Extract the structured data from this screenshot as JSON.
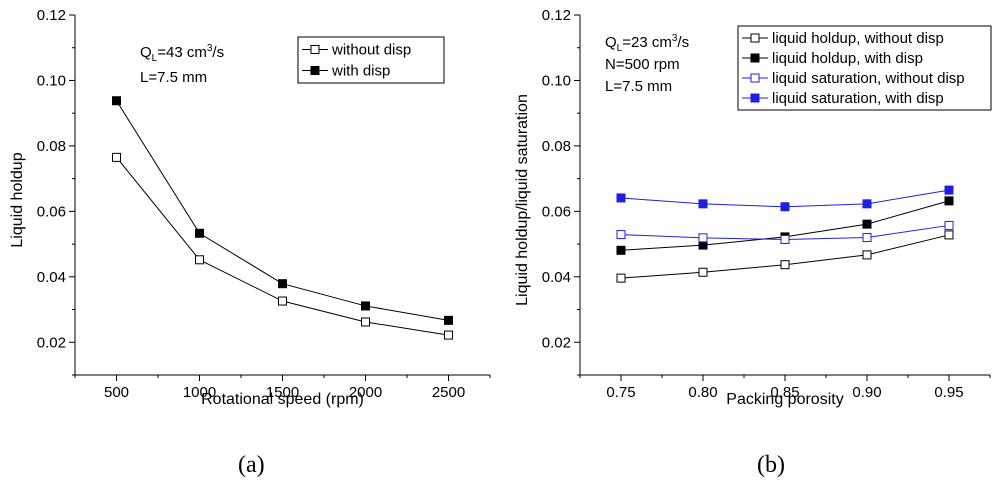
{
  "panels": [
    {
      "caption": "(a)"
    },
    {
      "caption": "(b)"
    }
  ],
  "chart_data": [
    {
      "type": "line",
      "xlabel": "Rotational speed (rpm)",
      "ylabel": "Liquid holdup",
      "x": [
        500,
        1000,
        1500,
        2000,
        2500
      ],
      "xticks": [
        "500",
        "1000",
        "1500",
        "2000",
        "2500"
      ],
      "xlim": [
        250,
        2750
      ],
      "ylim": [
        0.01,
        0.12
      ],
      "yticks": [
        "0.02",
        "0.04",
        "0.06",
        "0.08",
        "0.10",
        "0.12"
      ],
      "annotations": [
        {
          "base": "Q",
          "sub": "L",
          "text": "=43 cm",
          "sup": "3",
          "tail": "/s"
        },
        {
          "text": "L=7.5 mm"
        }
      ],
      "legend_position": "top-right",
      "series": [
        {
          "name": "without disp",
          "color": "#000000",
          "marker": "open-square",
          "values": [
            0.0765,
            0.0452,
            0.0326,
            0.0262,
            0.0222
          ]
        },
        {
          "name": "with disp",
          "color": "#000000",
          "marker": "filled-square",
          "values": [
            0.0938,
            0.0533,
            0.0379,
            0.0311,
            0.0267
          ]
        }
      ]
    },
    {
      "type": "line",
      "xlabel": "Packing porosity",
      "ylabel": "Liquid holdup/liquid saturation",
      "x": [
        0.75,
        0.8,
        0.85,
        0.9,
        0.95
      ],
      "xticks": [
        "0.75",
        "0.80",
        "0.85",
        "0.90",
        "0.95"
      ],
      "xlim": [
        0.725,
        0.975
      ],
      "ylim": [
        0.01,
        0.12
      ],
      "yticks": [
        "0.02",
        "0.04",
        "0.06",
        "0.08",
        "0.10",
        "0.12"
      ],
      "annotations": [
        {
          "base": "Q",
          "sub": "L",
          "text": "=23 cm",
          "sup": "3",
          "tail": "/s"
        },
        {
          "text": "N=500 rpm"
        },
        {
          "text": "L=7.5 mm"
        }
      ],
      "legend_position": "top-right",
      "series": [
        {
          "name": "liquid holdup, without disp",
          "color": "#000000",
          "marker": "open-square",
          "values": [
            0.0396,
            0.0414,
            0.0437,
            0.0467,
            0.0528
          ]
        },
        {
          "name": "liquid holdup, with disp",
          "color": "#000000",
          "marker": "filled-square",
          "values": [
            0.0481,
            0.0497,
            0.0522,
            0.0561,
            0.0632
          ]
        },
        {
          "name": "liquid saturation, without disp",
          "color": "#1f1fe0",
          "marker": "open-square",
          "values": [
            0.0529,
            0.0519,
            0.0514,
            0.052,
            0.0557
          ]
        },
        {
          "name": "liquid saturation, with disp",
          "color": "#1f1fe0",
          "marker": "filled-square",
          "values": [
            0.0641,
            0.0623,
            0.0614,
            0.0623,
            0.0665
          ]
        }
      ]
    }
  ]
}
